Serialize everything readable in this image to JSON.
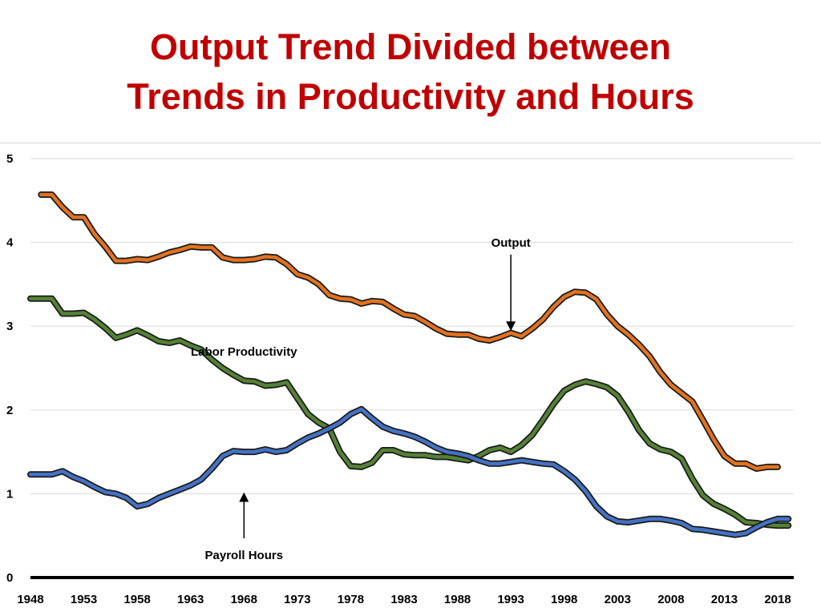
{
  "title_line1": "Output Trend Divided between",
  "title_line2": "Trends in Productivity and Hours",
  "chart_data": {
    "type": "line",
    "title": "Output Trend Divided between Trends in Productivity and Hours",
    "xlabel": "",
    "ylabel": "",
    "xlim": [
      1948,
      2019.5
    ],
    "ylim": [
      0,
      5
    ],
    "grid": true,
    "x_ticks": [
      "1948",
      "1953",
      "1958",
      "1963",
      "1968",
      "1973",
      "1978",
      "1983",
      "1988",
      "1993",
      "1998",
      "2003",
      "2008",
      "2013",
      "2018"
    ],
    "y_ticks": [
      "0",
      "1",
      "2",
      "3",
      "4",
      "5"
    ],
    "series": [
      {
        "name": "Output",
        "color": "#e2721f",
        "x": [
          1949,
          1950,
          1951,
          1952,
          1953,
          1954,
          1955,
          1956,
          1957,
          1958,
          1959,
          1960,
          1961,
          1962,
          1963,
          1964,
          1965,
          1966,
          1967,
          1968,
          1969,
          1970,
          1971,
          1972,
          1973,
          1974,
          1975,
          1976,
          1977,
          1978,
          1979,
          1980,
          1981,
          1982,
          1983,
          1984,
          1985,
          1986,
          1987,
          1988,
          1989,
          1990,
          1991,
          1992,
          1993,
          1994,
          1995,
          1996,
          1997,
          1998,
          1999,
          2000,
          2001,
          2002,
          2003,
          2004,
          2005,
          2006,
          2007,
          2008,
          2009,
          2010,
          2011,
          2012,
          2013,
          2014,
          2015,
          2016,
          2017,
          2018
        ],
        "values": [
          4.57,
          4.57,
          4.42,
          4.3,
          4.3,
          4.1,
          3.95,
          3.78,
          3.78,
          3.8,
          3.79,
          3.83,
          3.88,
          3.91,
          3.95,
          3.94,
          3.94,
          3.82,
          3.79,
          3.79,
          3.8,
          3.83,
          3.82,
          3.74,
          3.62,
          3.58,
          3.5,
          3.37,
          3.33,
          3.32,
          3.27,
          3.3,
          3.29,
          3.21,
          3.14,
          3.12,
          3.05,
          2.97,
          2.91,
          2.9,
          2.9,
          2.85,
          2.83,
          2.87,
          2.92,
          2.88,
          2.97,
          3.08,
          3.23,
          3.35,
          3.41,
          3.4,
          3.32,
          3.14,
          3.0,
          2.9,
          2.78,
          2.64,
          2.45,
          2.3,
          2.2,
          2.1,
          1.88,
          1.65,
          1.45,
          1.36,
          1.36,
          1.3,
          1.32,
          1.32
        ]
      },
      {
        "name": "Labor Productivity",
        "color": "#548235",
        "x": [
          1948,
          1949,
          1950,
          1951,
          1952,
          1953,
          1954,
          1955,
          1956,
          1957,
          1958,
          1959,
          1960,
          1961,
          1962,
          1963,
          1964,
          1965,
          1966,
          1967,
          1968,
          1969,
          1970,
          1971,
          1972,
          1973,
          1974,
          1975,
          1976,
          1977,
          1978,
          1979,
          1980,
          1981,
          1982,
          1983,
          1984,
          1985,
          1986,
          1987,
          1988,
          1989,
          1990,
          1991,
          1992,
          1993,
          1994,
          1995,
          1996,
          1997,
          1998,
          1999,
          2000,
          2001,
          2002,
          2003,
          2004,
          2005,
          2006,
          2007,
          2008,
          2009,
          2010,
          2011,
          2012,
          2013,
          2014,
          2015,
          2016,
          2017,
          2018,
          2019
        ],
        "values": [
          3.33,
          3.33,
          3.33,
          3.15,
          3.15,
          3.16,
          3.08,
          2.98,
          2.86,
          2.9,
          2.95,
          2.89,
          2.82,
          2.8,
          2.83,
          2.77,
          2.72,
          2.6,
          2.5,
          2.42,
          2.35,
          2.34,
          2.29,
          2.3,
          2.33,
          2.14,
          1.95,
          1.85,
          1.78,
          1.5,
          1.33,
          1.32,
          1.37,
          1.52,
          1.52,
          1.47,
          1.46,
          1.46,
          1.44,
          1.44,
          1.42,
          1.4,
          1.45,
          1.52,
          1.55,
          1.5,
          1.58,
          1.7,
          1.88,
          2.07,
          2.23,
          2.3,
          2.34,
          2.31,
          2.27,
          2.17,
          1.98,
          1.76,
          1.6,
          1.53,
          1.5,
          1.42,
          1.18,
          0.98,
          0.88,
          0.82,
          0.75,
          0.66,
          0.65,
          0.63,
          0.62,
          0.62
        ]
      },
      {
        "name": "Payroll Hours",
        "color": "#4472c4",
        "x": [
          1948,
          1949,
          1950,
          1951,
          1952,
          1953,
          1954,
          1955,
          1956,
          1957,
          1958,
          1959,
          1960,
          1961,
          1962,
          1963,
          1964,
          1965,
          1966,
          1967,
          1968,
          1969,
          1970,
          1971,
          1972,
          1973,
          1974,
          1975,
          1976,
          1977,
          1978,
          1979,
          1980,
          1981,
          1982,
          1983,
          1984,
          1985,
          1986,
          1987,
          1988,
          1989,
          1990,
          1991,
          1992,
          1993,
          1994,
          1995,
          1996,
          1997,
          1998,
          1999,
          2000,
          2001,
          2002,
          2003,
          2004,
          2005,
          2006,
          2007,
          2008,
          2009,
          2010,
          2011,
          2012,
          2013,
          2014,
          2015,
          2016,
          2017,
          2018,
          2019
        ],
        "values": [
          1.23,
          1.23,
          1.23,
          1.27,
          1.2,
          1.15,
          1.08,
          1.02,
          1.0,
          0.95,
          0.85,
          0.88,
          0.95,
          1.0,
          1.05,
          1.1,
          1.17,
          1.3,
          1.45,
          1.51,
          1.5,
          1.5,
          1.53,
          1.5,
          1.52,
          1.6,
          1.67,
          1.72,
          1.78,
          1.85,
          1.95,
          2.01,
          1.9,
          1.8,
          1.75,
          1.72,
          1.68,
          1.62,
          1.55,
          1.5,
          1.48,
          1.45,
          1.4,
          1.36,
          1.36,
          1.38,
          1.4,
          1.38,
          1.36,
          1.35,
          1.27,
          1.17,
          1.03,
          0.85,
          0.73,
          0.67,
          0.66,
          0.68,
          0.7,
          0.7,
          0.68,
          0.65,
          0.58,
          0.57,
          0.55,
          0.53,
          0.51,
          0.53,
          0.6,
          0.66,
          0.7,
          0.7
        ]
      }
    ],
    "annotations": [
      {
        "text": "Output",
        "x": 1993,
        "y": 3.95,
        "arrow_to": 3.0
      },
      {
        "text": "Labor Productivity",
        "x": 1968,
        "y": 2.65
      },
      {
        "text": "Payroll Hours",
        "x": 1968,
        "y": 0.22,
        "arrow_to": 0.96
      }
    ]
  }
}
